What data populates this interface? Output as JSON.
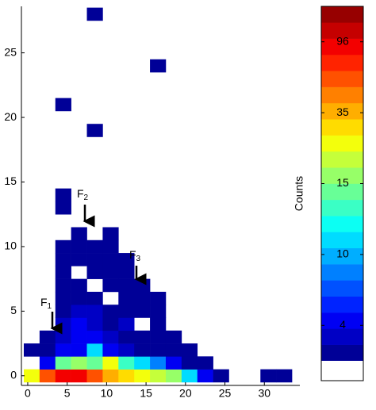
{
  "chart_data": {
    "type": "heatmap",
    "bin_size": [
      2,
      1
    ],
    "x": [
      0.5,
      2.5,
      4.5,
      6.5,
      8.5,
      10.5,
      12.5,
      14.5,
      16.5,
      18.5,
      20.5,
      22.5,
      24.5,
      30.5,
      32.5,
      2.5,
      4.5,
      6.5,
      8.5,
      10.5,
      12.5,
      14.5,
      16.5,
      18.5,
      20.5,
      22.5,
      0.5,
      2.5,
      4.5,
      6.5,
      8.5,
      10.5,
      12.5,
      14.5,
      16.5,
      18.5,
      20.5,
      2.5,
      4.5,
      6.5,
      8.5,
      10.5,
      12.5,
      14.5,
      16.5,
      18.5,
      4.5,
      6.5,
      8.5,
      10.5,
      12.5,
      16.5,
      4.5,
      6.5,
      8.5,
      10.5,
      12.5,
      14.5,
      16.5,
      4.5,
      6.5,
      8.5,
      12.5,
      14.5,
      16.5,
      4.5,
      6.5,
      10.5,
      12.5,
      14.5,
      4.5,
      8.5,
      10.5,
      12.5,
      4.5,
      6.5,
      8.5,
      10.5,
      12.5,
      4.5,
      6.5,
      8.5,
      10.5,
      6.5,
      10.5,
      4.5,
      4.5,
      8.5,
      4.5,
      16.5,
      8.5
    ],
    "y": [
      0,
      0,
      0,
      0,
      0,
      0,
      0,
      0,
      0,
      0,
      0,
      0,
      0,
      0,
      0,
      1,
      1,
      1,
      1,
      1,
      1,
      1,
      1,
      1,
      1,
      1,
      2,
      2,
      2,
      2,
      2,
      2,
      2,
      2,
      2,
      2,
      2,
      3,
      3,
      3,
      3,
      3,
      3,
      3,
      3,
      3,
      4,
      4,
      4,
      4,
      4,
      4,
      5,
      5,
      5,
      5,
      5,
      5,
      5,
      6,
      6,
      6,
      6,
      6,
      6,
      7,
      7,
      7,
      7,
      7,
      8,
      8,
      8,
      8,
      9,
      9,
      9,
      9,
      9,
      10,
      10,
      10,
      10,
      11,
      11,
      13,
      14,
      19,
      21,
      24,
      28
    ],
    "values": [
      25,
      60,
      90,
      100,
      70,
      40,
      30,
      25,
      22,
      15,
      11,
      4,
      1,
      1,
      1,
      4,
      14,
      18,
      14,
      25,
      13,
      11,
      8,
      4,
      2,
      1,
      1,
      2,
      4,
      5,
      11,
      4,
      3,
      2,
      1,
      1,
      1,
      2,
      3,
      4,
      4,
      3,
      2,
      1,
      1,
      1,
      3,
      4,
      3,
      2,
      3,
      1,
      2,
      3,
      3,
      2,
      2,
      1,
      1,
      2,
      2,
      2,
      1,
      1,
      1,
      1,
      1,
      1,
      1,
      1,
      1,
      1,
      1,
      1,
      1,
      1,
      1,
      1,
      1,
      1,
      1,
      1,
      1,
      1,
      1,
      1,
      1,
      1,
      1,
      1,
      1
    ],
    "xlim": [
      -0.8,
      34.5
    ],
    "xticks": [
      0,
      5,
      10,
      15,
      20,
      25,
      30
    ],
    "ylim": [
      -0.75,
      28.6
    ],
    "yticks": [
      0,
      5,
      10,
      15,
      20,
      25
    ],
    "colorbar": {
      "label": "Counts",
      "lim": [
        1,
        150
      ],
      "ticks": [
        4,
        10,
        15,
        35,
        96
      ]
    },
    "annotations": [
      {
        "label": "F",
        "subscript": "1"
      },
      {
        "label": "F",
        "subscript": "2"
      },
      {
        "label": "F",
        "subscript": "3"
      }
    ]
  }
}
